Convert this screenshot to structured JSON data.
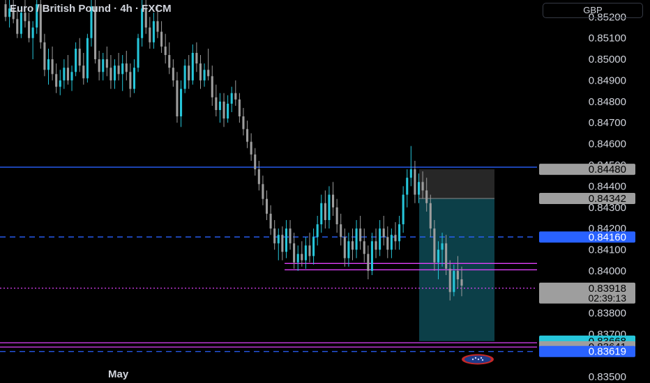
{
  "header": {
    "symbol_title": "Euro / British Pound · 4h · FXCM",
    "currency_button": "GBP"
  },
  "x_axis": {
    "month_label": "May"
  },
  "colors": {
    "background": "#000000",
    "up_candle": "#26c6da",
    "down_candle": "#9e9e9e",
    "blue_line": "#2962ff",
    "magenta_line": "#e040fb",
    "target_zone": "#0e4a55",
    "stop_zone": "#2b2b2b"
  },
  "chart_data": {
    "type": "candlestick",
    "title": "Euro / British Pound · 4h · FXCM",
    "y_axis": {
      "currency": "GBP",
      "ylim": [
        0.8347,
        0.8528
      ],
      "ticks": [
        "0.85200",
        "0.85100",
        "0.85000",
        "0.84900",
        "0.84800",
        "0.84700",
        "0.84600",
        "0.84500",
        "0.84400",
        "0.84300",
        "0.84200",
        "0.84100",
        "0.84000",
        "0.83800",
        "0.83700",
        "0.83500"
      ],
      "tick_values": [
        0.852,
        0.851,
        0.85,
        0.849,
        0.848,
        0.847,
        0.846,
        0.845,
        0.844,
        0.843,
        0.842,
        0.841,
        0.84,
        0.838,
        0.837,
        0.835
      ]
    },
    "x_axis_labels": [
      "May"
    ],
    "price_labels": [
      {
        "text": "0.84480",
        "value": 0.8448,
        "style": "gray"
      },
      {
        "text": "0.84342",
        "value": 0.84342,
        "style": "gray"
      },
      {
        "text": "0.84160",
        "value": 0.8416,
        "style": "blue"
      },
      {
        "text": "0.83918",
        "value": 0.83918,
        "style": "current",
        "countdown": "02:39:13"
      },
      {
        "text": "0.83668",
        "value": 0.83668,
        "style": "teal"
      },
      {
        "text": "0.83641",
        "value": 0.83641,
        "style": "gray"
      },
      {
        "text": "0.83619",
        "value": 0.83619,
        "style": "blue"
      }
    ],
    "horizontal_lines": [
      {
        "value": 0.8449,
        "color": "#2962ff",
        "style": "solid"
      },
      {
        "value": 0.8416,
        "color": "#2962ff",
        "style": "dashed"
      },
      {
        "value": 0.84035,
        "color": "#e040fb",
        "style": "solid",
        "start_frac": 0.53
      },
      {
        "value": 0.84005,
        "color": "#e040fb",
        "style": "solid",
        "start_frac": 0.53
      },
      {
        "value": 0.83918,
        "color": "#e040fb",
        "style": "dotted"
      },
      {
        "value": 0.8366,
        "color": "#e040fb",
        "style": "solid"
      },
      {
        "value": 0.8364,
        "color": "#e040fb",
        "style": "solid"
      },
      {
        "value": 0.83619,
        "color": "#2962ff",
        "style": "dashed"
      }
    ],
    "position_tool": {
      "entry": 0.84342,
      "stop": 0.8448,
      "target": 0.83668
    },
    "candles": [
      [
        0.8526,
        0.853,
        0.8518,
        0.852
      ],
      [
        0.852,
        0.8528,
        0.8515,
        0.8524
      ],
      [
        0.8524,
        0.8529,
        0.8517,
        0.8519
      ],
      [
        0.8519,
        0.8523,
        0.851,
        0.8512
      ],
      [
        0.8512,
        0.8525,
        0.851,
        0.8522
      ],
      [
        0.8522,
        0.853,
        0.8515,
        0.8518
      ],
      [
        0.8518,
        0.8522,
        0.8508,
        0.851
      ],
      [
        0.851,
        0.8518,
        0.85,
        0.8515
      ],
      [
        0.8515,
        0.853,
        0.8512,
        0.8526
      ],
      [
        0.8526,
        0.853,
        0.8505,
        0.8508
      ],
      [
        0.8508,
        0.8512,
        0.8492,
        0.8495
      ],
      [
        0.8495,
        0.8505,
        0.8488,
        0.85
      ],
      [
        0.85,
        0.8506,
        0.849,
        0.8493
      ],
      [
        0.8493,
        0.8498,
        0.8484,
        0.8487
      ],
      [
        0.8487,
        0.8495,
        0.8483,
        0.849
      ],
      [
        0.849,
        0.85,
        0.8486,
        0.8496
      ],
      [
        0.8496,
        0.8502,
        0.8488,
        0.849
      ],
      [
        0.849,
        0.8497,
        0.8485,
        0.8494
      ],
      [
        0.8494,
        0.8508,
        0.8492,
        0.8505
      ],
      [
        0.8505,
        0.851,
        0.8494,
        0.8497
      ],
      [
        0.8497,
        0.8503,
        0.8488,
        0.8491
      ],
      [
        0.8491,
        0.8512,
        0.8489,
        0.851
      ],
      [
        0.851,
        0.853,
        0.8506,
        0.8525
      ],
      [
        0.8525,
        0.8528,
        0.8498,
        0.85
      ],
      [
        0.85,
        0.8504,
        0.849,
        0.8494
      ],
      [
        0.8494,
        0.8503,
        0.849,
        0.85
      ],
      [
        0.85,
        0.8506,
        0.8492,
        0.8496
      ],
      [
        0.8496,
        0.8502,
        0.8486,
        0.849
      ],
      [
        0.849,
        0.85,
        0.8486,
        0.8497
      ],
      [
        0.8497,
        0.8503,
        0.849,
        0.8493
      ],
      [
        0.8493,
        0.8502,
        0.8485,
        0.8498
      ],
      [
        0.8498,
        0.8504,
        0.849,
        0.8494
      ],
      [
        0.8494,
        0.8498,
        0.8482,
        0.8486
      ],
      [
        0.8486,
        0.85,
        0.8484,
        0.8496
      ],
      [
        0.8496,
        0.8512,
        0.8494,
        0.851
      ],
      [
        0.851,
        0.8528,
        0.8506,
        0.8524
      ],
      [
        0.8524,
        0.853,
        0.8512,
        0.8515
      ],
      [
        0.8515,
        0.852,
        0.8505,
        0.8508
      ],
      [
        0.8508,
        0.8522,
        0.8505,
        0.8518
      ],
      [
        0.8518,
        0.8526,
        0.851,
        0.8513
      ],
      [
        0.8513,
        0.8518,
        0.8503,
        0.8506
      ],
      [
        0.8506,
        0.8512,
        0.8498,
        0.8502
      ],
      [
        0.8502,
        0.8508,
        0.8493,
        0.8496
      ],
      [
        0.8496,
        0.85,
        0.8487,
        0.849
      ],
      [
        0.849,
        0.8494,
        0.847,
        0.8473
      ],
      [
        0.8473,
        0.849,
        0.8468,
        0.8486
      ],
      [
        0.8486,
        0.85,
        0.8484,
        0.8497
      ],
      [
        0.8497,
        0.8502,
        0.8486,
        0.849
      ],
      [
        0.849,
        0.8507,
        0.8488,
        0.8503
      ],
      [
        0.8503,
        0.8508,
        0.8494,
        0.8498
      ],
      [
        0.8498,
        0.8502,
        0.8486,
        0.849
      ],
      [
        0.849,
        0.8498,
        0.8487,
        0.8495
      ],
      [
        0.8495,
        0.8505,
        0.849,
        0.8492
      ],
      [
        0.8492,
        0.8497,
        0.8478,
        0.8482
      ],
      [
        0.8482,
        0.8488,
        0.8473,
        0.8476
      ],
      [
        0.8476,
        0.8484,
        0.847,
        0.848
      ],
      [
        0.848,
        0.8484,
        0.8468,
        0.8472
      ],
      [
        0.8472,
        0.8483,
        0.847,
        0.8479
      ],
      [
        0.8479,
        0.8487,
        0.8475,
        0.8484
      ],
      [
        0.8484,
        0.849,
        0.8478,
        0.8481
      ],
      [
        0.8481,
        0.8484,
        0.847,
        0.8473
      ],
      [
        0.8473,
        0.8477,
        0.8464,
        0.8467
      ],
      [
        0.8467,
        0.8471,
        0.8458,
        0.8461
      ],
      [
        0.8461,
        0.8465,
        0.8452,
        0.8455
      ],
      [
        0.8455,
        0.8458,
        0.8445,
        0.8448
      ],
      [
        0.8448,
        0.8452,
        0.8438,
        0.8441
      ],
      [
        0.8441,
        0.8445,
        0.8431,
        0.8434
      ],
      [
        0.8434,
        0.8438,
        0.8424,
        0.8427
      ],
      [
        0.8427,
        0.8431,
        0.8417,
        0.842
      ],
      [
        0.842,
        0.8424,
        0.841,
        0.8413
      ],
      [
        0.8413,
        0.842,
        0.8405,
        0.8417
      ],
      [
        0.8417,
        0.8421,
        0.8405,
        0.8409
      ],
      [
        0.8409,
        0.8424,
        0.8406,
        0.842
      ],
      [
        0.842,
        0.8424,
        0.841,
        0.8413
      ],
      [
        0.8413,
        0.8418,
        0.8401,
        0.8404
      ],
      [
        0.8404,
        0.8412,
        0.84,
        0.8408
      ],
      [
        0.8408,
        0.8414,
        0.8402,
        0.8405
      ],
      [
        0.8405,
        0.8416,
        0.8401,
        0.8412
      ],
      [
        0.8412,
        0.8418,
        0.8404,
        0.8407
      ],
      [
        0.8407,
        0.842,
        0.8403,
        0.8416
      ],
      [
        0.8416,
        0.8426,
        0.8412,
        0.8422
      ],
      [
        0.8422,
        0.8436,
        0.8418,
        0.8432
      ],
      [
        0.8432,
        0.8438,
        0.842,
        0.8424
      ],
      [
        0.8424,
        0.844,
        0.842,
        0.8436
      ],
      [
        0.8436,
        0.8442,
        0.8426,
        0.843
      ],
      [
        0.843,
        0.8434,
        0.8418,
        0.8422
      ],
      [
        0.8422,
        0.8427,
        0.8412,
        0.8416
      ],
      [
        0.8416,
        0.842,
        0.8402,
        0.8406
      ],
      [
        0.8406,
        0.8418,
        0.8402,
        0.8414
      ],
      [
        0.8414,
        0.842,
        0.8405,
        0.841
      ],
      [
        0.841,
        0.8424,
        0.8406,
        0.842
      ],
      [
        0.842,
        0.8426,
        0.841,
        0.8414
      ],
      [
        0.8414,
        0.842,
        0.8404,
        0.8408
      ],
      [
        0.8408,
        0.8412,
        0.8396,
        0.84
      ],
      [
        0.84,
        0.8418,
        0.8398,
        0.8414
      ],
      [
        0.8414,
        0.842,
        0.8406,
        0.841
      ],
      [
        0.841,
        0.8424,
        0.8407,
        0.842
      ],
      [
        0.842,
        0.8426,
        0.8412,
        0.8416
      ],
      [
        0.8416,
        0.8421,
        0.8406,
        0.841
      ],
      [
        0.841,
        0.842,
        0.8406,
        0.8417
      ],
      [
        0.8417,
        0.8423,
        0.841,
        0.8414
      ],
      [
        0.8414,
        0.8426,
        0.841,
        0.8422
      ],
      [
        0.8422,
        0.844,
        0.8418,
        0.8436
      ],
      [
        0.8436,
        0.8448,
        0.843,
        0.8444
      ],
      [
        0.8444,
        0.8459,
        0.844,
        0.8448
      ],
      [
        0.8448,
        0.8452,
        0.8432,
        0.8436
      ],
      [
        0.8436,
        0.8446,
        0.8432,
        0.8442
      ],
      [
        0.8442,
        0.8447,
        0.8434,
        0.8438
      ],
      [
        0.8438,
        0.8444,
        0.8428,
        0.8432
      ],
      [
        0.8432,
        0.8436,
        0.8416,
        0.842
      ],
      [
        0.842,
        0.8424,
        0.84,
        0.8404
      ],
      [
        0.8404,
        0.8414,
        0.8396,
        0.841
      ],
      [
        0.841,
        0.8418,
        0.8402,
        0.8413
      ],
      [
        0.8413,
        0.8417,
        0.8398,
        0.8401
      ],
      [
        0.8401,
        0.8405,
        0.8386,
        0.839
      ],
      [
        0.839,
        0.8403,
        0.8388,
        0.84
      ],
      [
        0.84,
        0.8407,
        0.8392,
        0.8396
      ],
      [
        0.8396,
        0.8402,
        0.8388,
        0.8393
      ]
    ]
  }
}
